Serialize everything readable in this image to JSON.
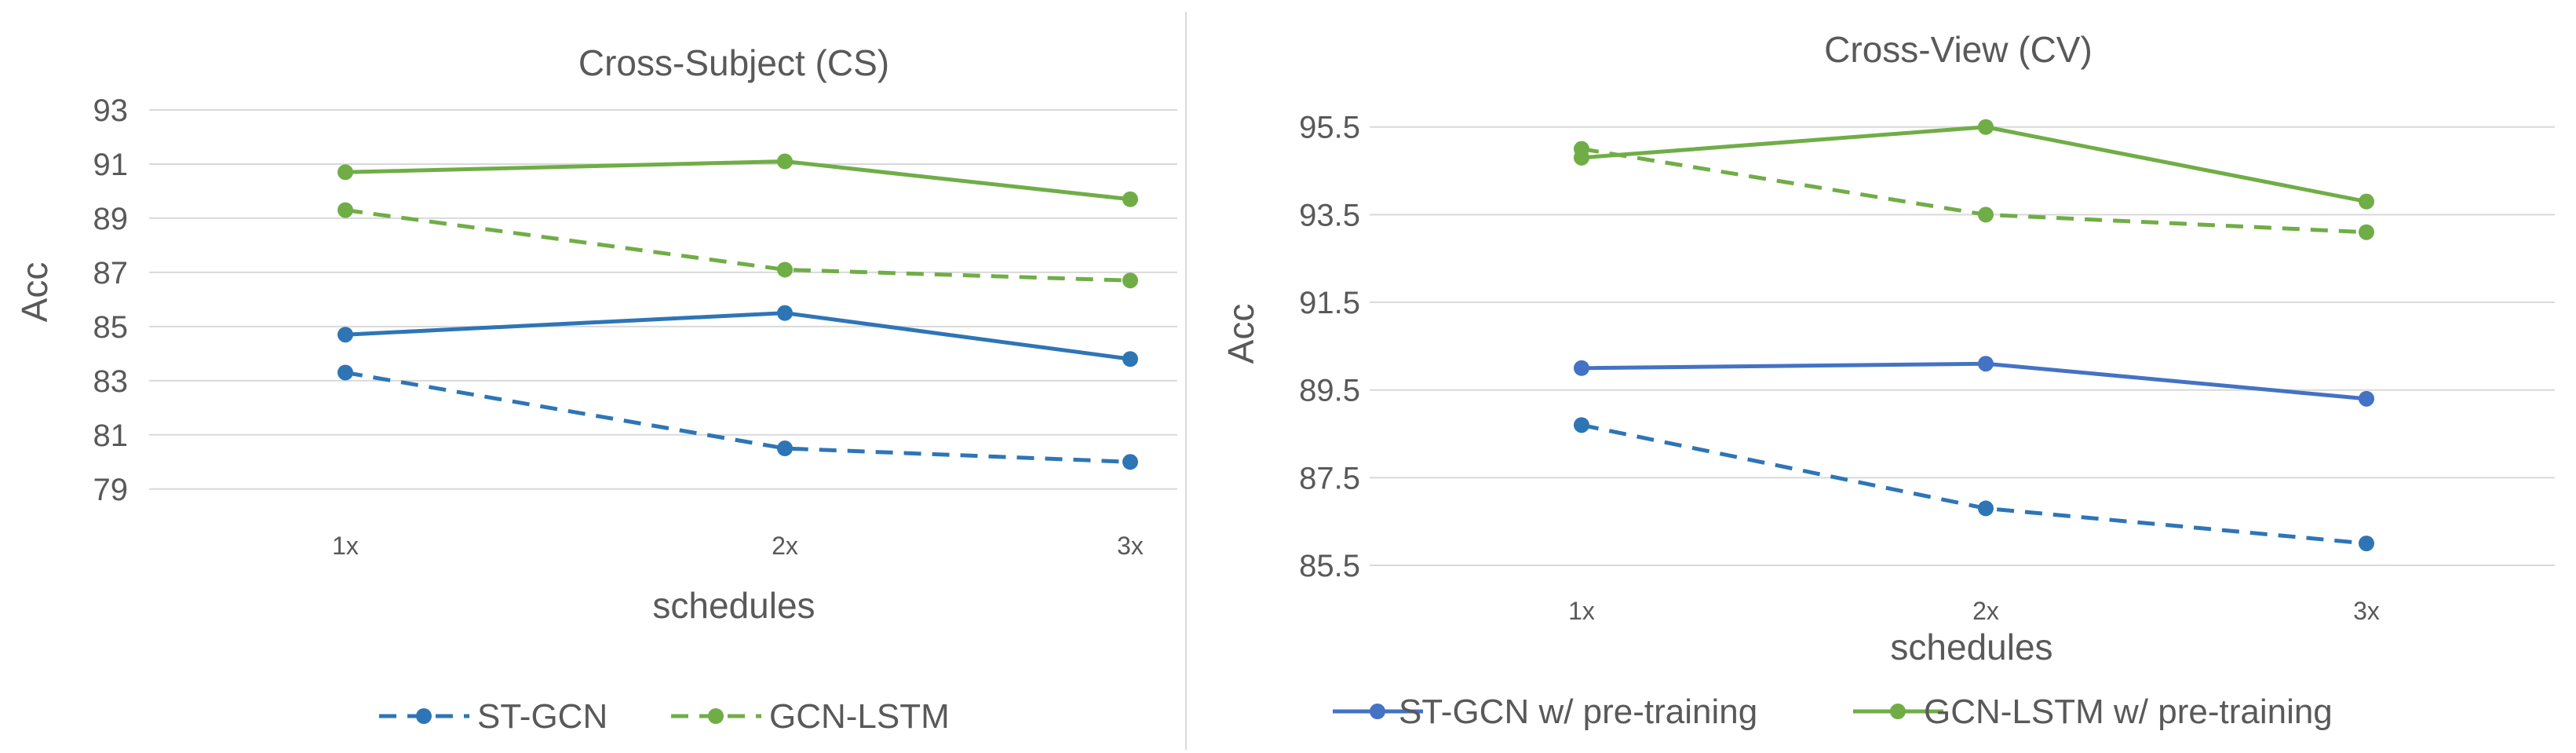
{
  "chart_data": [
    {
      "type": "line",
      "title": "Cross-Subject (CS)",
      "xlabel": "schedules",
      "ylabel": "Acc",
      "categories": [
        "1x",
        "2x",
        "3x"
      ],
      "ylim": [
        78.5,
        93.0
      ],
      "yticks": [
        "93",
        "91",
        "89",
        "87",
        "85",
        "83",
        "81",
        "79"
      ],
      "grid": true,
      "legend_position": "bottom",
      "series": [
        {
          "name": "ST-GCN",
          "key": "stgcn",
          "values": [
            83.3,
            80.5,
            80.0
          ],
          "color": "#2e75b6",
          "dashed": true,
          "in_legend": true
        },
        {
          "name": "GCN-LSTM",
          "key": "gcnlstm",
          "values": [
            89.3,
            87.1,
            86.7
          ],
          "color": "#70ad47",
          "dashed": true,
          "in_legend": true
        },
        {
          "name": "ST-GCN w/ pre-training",
          "key": "stgcn-pretrain",
          "values": [
            84.7,
            85.5,
            83.8
          ],
          "color": "#2e75b6",
          "dashed": false,
          "in_legend": false
        },
        {
          "name": "GCN-LSTM w/ pre-training",
          "key": "gcnlstm-pretrain",
          "values": [
            90.7,
            91.1,
            89.7
          ],
          "color": "#70ad47",
          "dashed": false,
          "in_legend": false
        }
      ]
    },
    {
      "type": "line",
      "title": "Cross-View (CV)",
      "xlabel": "schedules",
      "ylabel": "Acc",
      "categories": [
        "1x",
        "2x",
        "3x"
      ],
      "ylim": [
        85.5,
        95.8
      ],
      "yticks": [
        "95.5",
        "93.5",
        "91.5",
        "89.5",
        "87.5",
        "85.5"
      ],
      "grid": true,
      "legend_position": "bottom",
      "series": [
        {
          "name": "ST-GCN",
          "key": "stgcn",
          "values": [
            88.7,
            86.8,
            86.0
          ],
          "color": "#2e75b6",
          "dashed": true,
          "in_legend": false
        },
        {
          "name": "GCN-LSTM",
          "key": "gcnlstm",
          "values": [
            95.0,
            93.5,
            93.1
          ],
          "color": "#70ad47",
          "dashed": true,
          "in_legend": false
        },
        {
          "name": "ST-GCN w/ pre-training",
          "key": "stgcn-pretrain",
          "values": [
            90.0,
            90.1,
            89.3
          ],
          "color": "#4472c4",
          "dashed": false,
          "in_legend": true
        },
        {
          "name": "GCN-LSTM w/ pre-training",
          "key": "gcnlstm-pretrain",
          "values": [
            94.8,
            95.5,
            93.8
          ],
          "color": "#70ad47",
          "dashed": false,
          "in_legend": true
        }
      ]
    }
  ]
}
